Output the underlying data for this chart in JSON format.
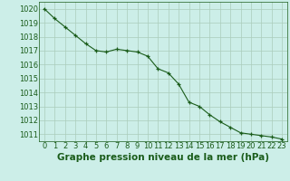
{
  "x": [
    0,
    1,
    2,
    3,
    4,
    5,
    6,
    7,
    8,
    9,
    10,
    11,
    12,
    13,
    14,
    15,
    16,
    17,
    18,
    19,
    20,
    21,
    22,
    23
  ],
  "y": [
    1020.0,
    1019.3,
    1018.7,
    1018.1,
    1017.5,
    1017.0,
    1016.9,
    1017.1,
    1017.0,
    1016.9,
    1016.6,
    1015.7,
    1015.4,
    1014.6,
    1013.3,
    1013.0,
    1012.4,
    1011.9,
    1011.5,
    1011.1,
    1011.0,
    1010.9,
    1010.8,
    1010.65
  ],
  "line_color": "#1a5c1a",
  "marker_color": "#1a5c1a",
  "bg_color": "#cceee8",
  "grid_color": "#aaccbb",
  "title": "Graphe pression niveau de la mer (hPa)",
  "xlim": [
    -0.5,
    23.5
  ],
  "ylim": [
    1010.5,
    1020.5
  ],
  "yticks": [
    1011,
    1012,
    1013,
    1014,
    1015,
    1016,
    1017,
    1018,
    1019,
    1020
  ],
  "xticks": [
    0,
    1,
    2,
    3,
    4,
    5,
    6,
    7,
    8,
    9,
    10,
    11,
    12,
    13,
    14,
    15,
    16,
    17,
    18,
    19,
    20,
    21,
    22,
    23
  ],
  "title_fontsize": 7.5,
  "tick_fontsize": 6,
  "title_color": "#1a5c1a",
  "tick_color": "#1a5c1a",
  "border_color": "#1a5c1a"
}
